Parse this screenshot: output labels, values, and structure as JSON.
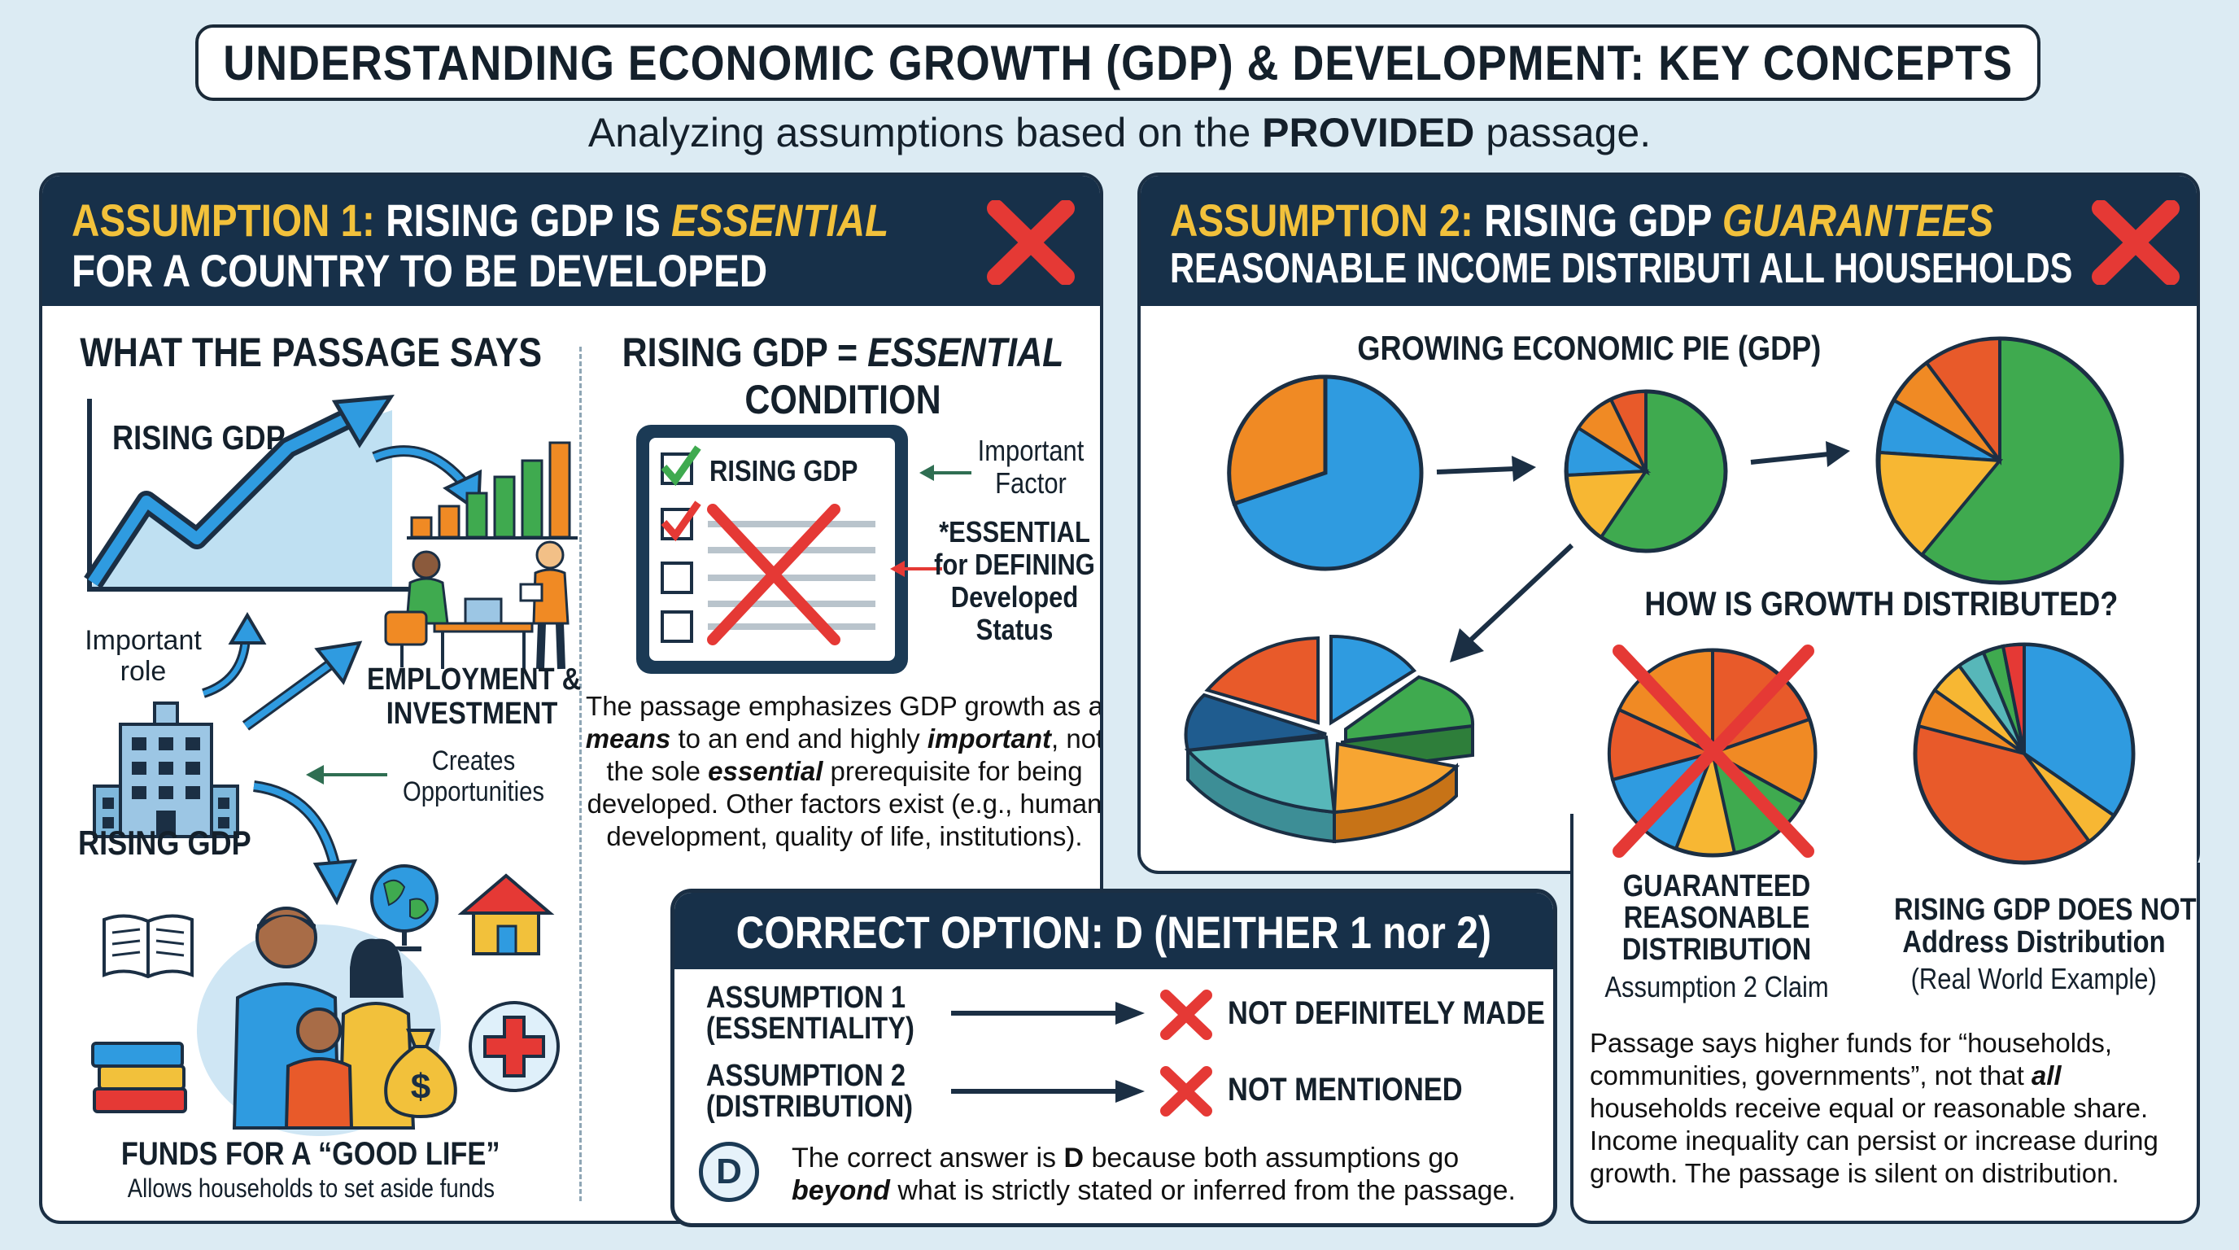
{
  "header": {
    "title": "UNDERSTANDING ECONOMIC GROWTH (GDP) & DEVELOPMENT: KEY CONCEPTS",
    "subtitle_pre": "Analyzing assumptions based on the ",
    "subtitle_bold": "PROVIDED",
    "subtitle_post": " passage."
  },
  "assumption1": {
    "head_a": "ASSUMPTION 1: ",
    "head_b": "RISING GDP IS ",
    "head_c": "ESSENTIAL",
    "head_line2": "FOR A COUNTRY TO BE DEVELOPED",
    "left": {
      "heading": "WHAT THE PASSAGE SAYS",
      "chart_label": "RISING GDP",
      "important_role": [
        "Important",
        "role"
      ],
      "employment": [
        "EMPLOYMENT &",
        "INVESTMENT"
      ],
      "creates": [
        "Creates",
        "Opportunities"
      ],
      "building_label": "RISING GDP",
      "funds_title": "FUNDS FOR A “GOOD LIFE”",
      "funds_sub": "Allows households to set aside funds"
    },
    "right": {
      "heading_a": "RISING GDP = ",
      "heading_b": "ESSENTIAL",
      "heading_line2": "CONDITION",
      "checklist_item": "RISING GDP",
      "important_factor": [
        "Important",
        "Factor"
      ],
      "essential_note": [
        "*ESSENTIAL",
        "for DEFINING",
        "Developed",
        "Status"
      ],
      "para": [
        {
          "t": "The passage emphasizes GDP growth as a "
        },
        {
          "t": "means",
          "s": "bi"
        },
        {
          "t": " to an end and highly "
        },
        {
          "t": "important",
          "s": "bi"
        },
        {
          "t": ", not the sole "
        },
        {
          "t": "essential",
          "s": "bi"
        },
        {
          "t": " prerequisite for being developed. Other factors exist (e.g., human development, quality of life, institutions)."
        }
      ]
    }
  },
  "assumption2": {
    "head_a": "ASSUMPTION 2: ",
    "head_b": "RISING GDP ",
    "head_c": "GUARANTEES",
    "head_line2": "REASONABLE INCOME DISTRIBUTI  ALL HOUSEHOLDS",
    "pie_heading": "GROWING ECONOMIC PIE (GDP)",
    "dist_heading": "HOW IS GROWTH DISTRIBUTED?",
    "guaranteed": [
      "GUARANTEED",
      "REASONABLE",
      "DISTRIBUTION"
    ],
    "guaranteed_sub": "Assumption 2 Claim",
    "rising_not": [
      "RISING GDP DOES NOT",
      "Address Distribution"
    ],
    "rising_not_sub": "(Real World Example)",
    "para": [
      {
        "t": "Passage says higher funds for “households, communities, governments”, not that "
      },
      {
        "t": "all",
        "s": "bi"
      },
      {
        "t": " households receive equal or reasonable share. Income inequality can persist or increase during growth. The passage is silent on distribution."
      }
    ]
  },
  "correct": {
    "heading": "CORRECT OPTION: D (NEITHER 1 nor 2)",
    "rows": [
      {
        "label": [
          "ASSUMPTION 1",
          "(ESSENTIALITY)"
        ],
        "result": "NOT DEFINITELY MADE"
      },
      {
        "label": [
          "ASSUMPTION 2",
          "(DISTRIBUTION)"
        ],
        "result": "NOT MENTIONED"
      }
    ],
    "badge": "D",
    "para": [
      {
        "t": "The correct answer is "
      },
      {
        "t": "D",
        "s": "b"
      },
      {
        "t": " because both assumptions go "
      },
      {
        "t": "beyond",
        "s": "bi"
      },
      {
        "t": " what is strictly stated or inferred from the passage."
      }
    ]
  },
  "colors": {
    "navy": "#173049",
    "yellow": "#f2c13b",
    "red": "#e53935",
    "green": "#3faa4f",
    "blue": "#2f9be0",
    "orange": "#f08a24",
    "teal": "#57b7b9",
    "background": "#dcebf3"
  },
  "icons": [
    "rising-chart-icon",
    "bar-chart-icon",
    "office-workers-icon",
    "building-icon",
    "family-icon",
    "globe-icon",
    "house-icon",
    "book-icon",
    "money-bag-icon",
    "medical-cross-icon",
    "checklist-icon",
    "pie-chart-icon",
    "arrow-icon",
    "x-mark-icon"
  ]
}
